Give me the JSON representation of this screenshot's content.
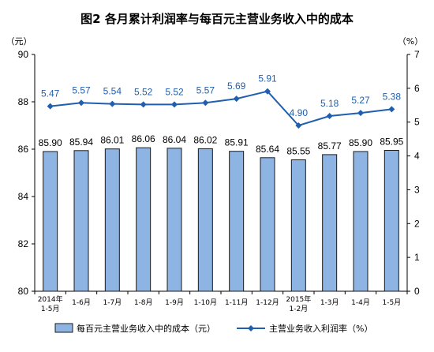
{
  "chart_data": {
    "type": "bar+line",
    "title": "图2  各月累计利润率与每百元主营业务收入中的成本",
    "left_unit": "（元）",
    "right_unit": "（%）",
    "categories": [
      [
        "2014年",
        "1-5月"
      ],
      [
        "1-6月"
      ],
      [
        "1-7月"
      ],
      [
        "1-8月"
      ],
      [
        "1-9月"
      ],
      [
        "1-10月"
      ],
      [
        "1-11月"
      ],
      [
        "1-12月"
      ],
      [
        "2015年",
        "1-2月"
      ],
      [
        "1-3月"
      ],
      [
        "1-4月"
      ],
      [
        "1-5月"
      ]
    ],
    "bar_series": {
      "name": "每百元主营业务收入中的成本（元）",
      "values": [
        85.9,
        85.94,
        86.01,
        86.06,
        86.04,
        86.02,
        85.91,
        85.64,
        85.55,
        85.77,
        85.9,
        85.95
      ],
      "labels": [
        "85.90",
        "85.94",
        "86.01",
        "86.06",
        "86.04",
        "86.02",
        "85.91",
        "85.64",
        "85.55",
        "85.77",
        "85.90",
        "85.95"
      ],
      "color": "#8db4e2"
    },
    "line_series": {
      "name": "主营业务收入利润率（%）",
      "values": [
        5.47,
        5.57,
        5.54,
        5.52,
        5.52,
        5.57,
        5.69,
        5.91,
        4.9,
        5.18,
        5.27,
        5.38
      ],
      "labels": [
        "5.47",
        "5.57",
        "5.54",
        "5.52",
        "5.52",
        "5.57",
        "5.69",
        "5.91",
        "4.90",
        "5.18",
        "5.27",
        "5.38"
      ],
      "color": "#1f5fae"
    },
    "left_axis": {
      "min": 80,
      "max": 90,
      "ticks": [
        "80",
        "82",
        "84",
        "86",
        "88",
        "90"
      ]
    },
    "right_axis": {
      "min": 0,
      "max": 7,
      "ticks": [
        "0",
        "1",
        "2",
        "3",
        "4",
        "5",
        "6",
        "7"
      ]
    },
    "grid": false,
    "legend_position": "bottom"
  }
}
